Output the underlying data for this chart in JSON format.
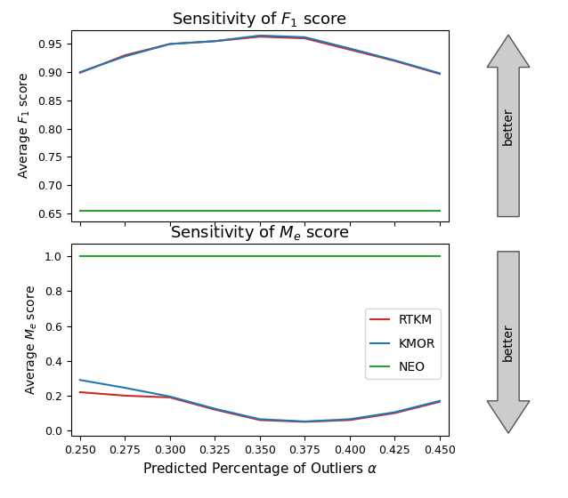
{
  "x": [
    0.25,
    0.275,
    0.3,
    0.325,
    0.35,
    0.375,
    0.4,
    0.425,
    0.45
  ],
  "f1_rtkm": [
    0.899,
    0.93,
    0.95,
    0.955,
    0.963,
    0.96,
    0.94,
    0.92,
    0.897
  ],
  "f1_kmor": [
    0.9,
    0.928,
    0.95,
    0.955,
    0.965,
    0.962,
    0.942,
    0.921,
    0.898
  ],
  "f1_neo": [
    0.655,
    0.655,
    0.655,
    0.655,
    0.655,
    0.655,
    0.655,
    0.655,
    0.655
  ],
  "me_rtkm": [
    0.22,
    0.2,
    0.19,
    0.12,
    0.06,
    0.05,
    0.06,
    0.1,
    0.165
  ],
  "me_kmor": [
    0.29,
    0.245,
    0.195,
    0.125,
    0.065,
    0.052,
    0.065,
    0.105,
    0.17
  ],
  "me_neo": [
    1.0,
    1.0,
    1.0,
    1.0,
    1.0,
    1.0,
    1.0,
    1.0,
    1.0
  ],
  "rtkm_color": "#d62728",
  "kmor_color": "#1f77b4",
  "neo_color": "#2ca02c",
  "title_f1": "Sensitivity of $F_1$ score",
  "title_me": "Sensitivity of $M_e$ score",
  "xlabel": "Predicted Percentage of Outliers $\\alpha$",
  "ylabel_f1": "Average $F_1$ score",
  "ylabel_me": "Average $M_e$ score",
  "xlim": [
    0.245,
    0.455
  ],
  "f1_ylim": [
    0.635,
    0.975
  ],
  "me_ylim": [
    -0.03,
    1.07
  ],
  "xticks": [
    0.25,
    0.275,
    0.3,
    0.325,
    0.35,
    0.375,
    0.4,
    0.425,
    0.45
  ],
  "f1_yticks": [
    0.65,
    0.7,
    0.75,
    0.8,
    0.85,
    0.9,
    0.95
  ],
  "me_yticks": [
    0.0,
    0.2,
    0.4,
    0.6,
    0.8,
    1.0
  ],
  "legend_labels": [
    "RTKM",
    "KMOR",
    "NEO"
  ],
  "arrow_face_color": "#cccccc",
  "arrow_edge_color": "#555555"
}
